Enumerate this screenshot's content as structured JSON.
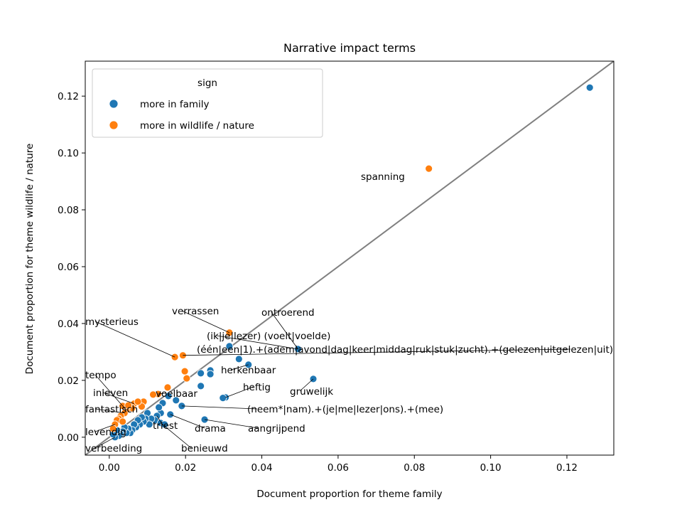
{
  "chart_data": {
    "type": "scatter",
    "title": "Narrative impact terms",
    "xlabel": "Document proportion for theme family",
    "ylabel": "Document proportion for theme wildlife / nature",
    "xlim": [
      -0.0063,
      0.1323
    ],
    "ylim": [
      -0.0063,
      0.1323
    ],
    "xticks": [
      "0.00",
      "0.02",
      "0.04",
      "0.06",
      "0.08",
      "0.10",
      "0.12"
    ],
    "yticks": [
      "0.00",
      "0.02",
      "0.04",
      "0.06",
      "0.08",
      "0.10",
      "0.12"
    ],
    "grid": false,
    "reference_line": "y = x",
    "legend": {
      "title": "sign",
      "placement": "top-left",
      "entries": [
        "more in family",
        "more in wildlife / nature"
      ]
    },
    "series": [
      {
        "name": "more in family",
        "color": "#1f77b4",
        "points": [
          [
            0.126,
            0.123
          ],
          [
            0.0535,
            0.0205
          ],
          [
            0.0495,
            0.031
          ],
          [
            0.0365,
            0.0255
          ],
          [
            0.034,
            0.0275
          ],
          [
            0.0315,
            0.032
          ],
          [
            0.0265,
            0.0235
          ],
          [
            0.0265,
            0.0222
          ],
          [
            0.024,
            0.0225
          ],
          [
            0.024,
            0.018
          ],
          [
            0.0305,
            0.014
          ],
          [
            0.0298,
            0.0138
          ],
          [
            0.025,
            0.0062
          ],
          [
            0.019,
            0.011
          ],
          [
            0.0175,
            0.013
          ],
          [
            0.016,
            0.008
          ],
          [
            0.0155,
            0.0145
          ],
          [
            0.014,
            0.012
          ],
          [
            0.0135,
            0.0085
          ],
          [
            0.013,
            0.0105
          ],
          [
            0.0125,
            0.0075
          ],
          [
            0.012,
            0.006
          ],
          [
            0.011,
            0.0065
          ],
          [
            0.0105,
            0.0045
          ],
          [
            0.01,
            0.0085
          ],
          [
            0.0095,
            0.0065
          ],
          [
            0.009,
            0.0055
          ],
          [
            0.0085,
            0.007
          ],
          [
            0.008,
            0.0045
          ],
          [
            0.0075,
            0.006
          ],
          [
            0.007,
            0.0035
          ],
          [
            0.0065,
            0.0045
          ],
          [
            0.006,
            0.0025
          ],
          [
            0.0055,
            0.0015
          ],
          [
            0.005,
            0.003
          ],
          [
            0.0045,
            0.0015
          ],
          [
            0.004,
            0.0035
          ],
          [
            0.0035,
            0.002
          ],
          [
            0.003,
            0.001
          ],
          [
            0.0025,
            0.0005
          ],
          [
            0.002,
            0.0025
          ],
          [
            0.0015,
            0.0
          ],
          [
            0.001,
            0.001
          ],
          [
            0.0135,
            0.005
          ],
          [
            0.0145,
            0.0045
          ]
        ]
      },
      {
        "name": "more in wildlife / nature",
        "color": "#ff7f0e",
        "points": [
          [
            0.0838,
            0.0945
          ],
          [
            0.0315,
            0.0368
          ],
          [
            0.0193,
            0.0288
          ],
          [
            0.0172,
            0.0282
          ],
          [
            0.0198,
            0.0232
          ],
          [
            0.0203,
            0.0207
          ],
          [
            0.0153,
            0.0175
          ],
          [
            0.0128,
            0.0152
          ],
          [
            0.0115,
            0.015
          ],
          [
            0.009,
            0.0125
          ],
          [
            0.0085,
            0.0108
          ],
          [
            0.0065,
            0.0118
          ],
          [
            0.006,
            0.0102
          ],
          [
            0.0045,
            0.0095
          ],
          [
            0.004,
            0.0085
          ],
          [
            0.0035,
            0.011
          ],
          [
            0.003,
            0.0075
          ],
          [
            0.0025,
            0.0065
          ],
          [
            0.002,
            0.006
          ],
          [
            0.0015,
            0.0045
          ],
          [
            0.001,
            0.003
          ],
          [
            0.0035,
            0.0055
          ],
          [
            0.005,
            0.0112
          ],
          [
            0.0075,
            0.0125
          ]
        ]
      }
    ],
    "annotations": [
      {
        "text": "spanning",
        "x": 0.0838,
        "y": 0.0945
      },
      {
        "text": "verrassen",
        "x": 0.0315,
        "y": 0.0368
      },
      {
        "text": "ontroerend",
        "x": 0.0495,
        "y": 0.031
      },
      {
        "text": "mysterieus",
        "x": 0.0172,
        "y": 0.0282
      },
      {
        "text": "(ik|je|lezer) (voelt|voelde)",
        "x": 0.0495,
        "y": 0.031
      },
      {
        "text": "(één|een|1).+(adem|avond|dag|keer|middag|ruk|stuk|zucht).+(gelezen|uitgelezen|uit)",
        "x": 0.0193,
        "y": 0.0288
      },
      {
        "text": "herkenbaar",
        "x": 0.0365,
        "y": 0.0255
      },
      {
        "text": "tempo",
        "x": 0.0045,
        "y": 0.0095
      },
      {
        "text": "heftig",
        "x": 0.0305,
        "y": 0.014
      },
      {
        "text": "gruwelijk",
        "x": 0.0535,
        "y": 0.0205
      },
      {
        "text": "inleven",
        "x": 0.0065,
        "y": 0.0118
      },
      {
        "text": "voelbaar",
        "x": 0.0128,
        "y": 0.0152
      },
      {
        "text": "(neem*|nam).+(je|me|lezer|ons).+(mee)",
        "x": 0.019,
        "y": 0.011
      },
      {
        "text": "fantastisch",
        "x": 0.004,
        "y": 0.0085
      },
      {
        "text": "triest",
        "x": 0.0125,
        "y": 0.0075
      },
      {
        "text": "drama",
        "x": 0.016,
        "y": 0.008
      },
      {
        "text": "aangrijpend",
        "x": 0.025,
        "y": 0.0062
      },
      {
        "text": "levendig",
        "x": 0.0015,
        "y": 0.0045
      },
      {
        "text": "verbeelding",
        "x": 0.0015,
        "y": 0.0
      },
      {
        "text": "benieuwd",
        "x": 0.0135,
        "y": 0.005
      }
    ]
  }
}
